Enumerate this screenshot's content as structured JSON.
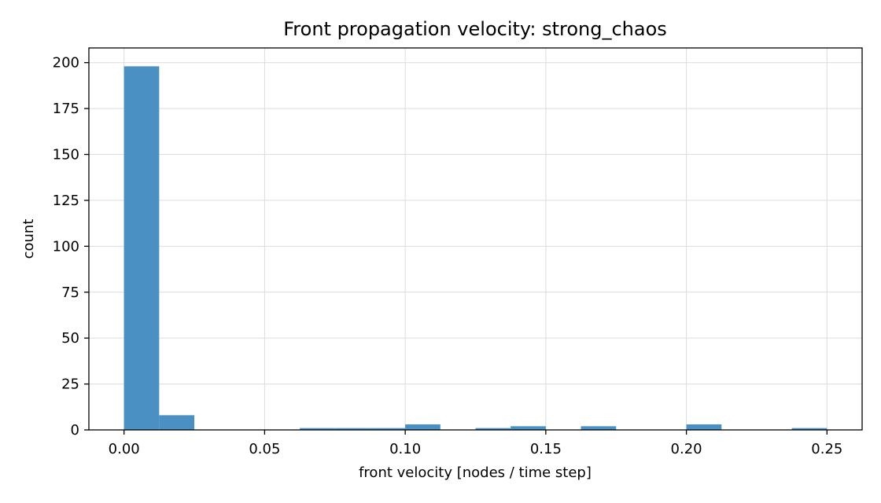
{
  "chart_data": {
    "type": "bar",
    "title": "Front propagation velocity: strong_chaos",
    "xlabel": "front velocity [nodes / time step]",
    "ylabel": "count",
    "xlim": [
      -0.0125,
      0.2625
    ],
    "ylim": [
      0,
      208
    ],
    "xticks": [
      0.0,
      0.05,
      0.1,
      0.15,
      0.2,
      0.25
    ],
    "xtick_labels": [
      "0.00",
      "0.05",
      "0.10",
      "0.15",
      "0.20",
      "0.25"
    ],
    "yticks": [
      0,
      25,
      50,
      75,
      100,
      125,
      150,
      175,
      200
    ],
    "ytick_labels": [
      "0",
      "25",
      "50",
      "75",
      "100",
      "125",
      "150",
      "175",
      "200"
    ],
    "grid": true,
    "bar_color": "#4a90c2",
    "bins": [
      {
        "x0": 0.0,
        "x1": 0.0125,
        "count": 198
      },
      {
        "x0": 0.0125,
        "x1": 0.025,
        "count": 8
      },
      {
        "x0": 0.025,
        "x1": 0.0375,
        "count": 0
      },
      {
        "x0": 0.0375,
        "x1": 0.05,
        "count": 0
      },
      {
        "x0": 0.05,
        "x1": 0.0625,
        "count": 0
      },
      {
        "x0": 0.0625,
        "x1": 0.075,
        "count": 1
      },
      {
        "x0": 0.075,
        "x1": 0.0875,
        "count": 1
      },
      {
        "x0": 0.0875,
        "x1": 0.1,
        "count": 1
      },
      {
        "x0": 0.1,
        "x1": 0.1125,
        "count": 3
      },
      {
        "x0": 0.1125,
        "x1": 0.125,
        "count": 0
      },
      {
        "x0": 0.125,
        "x1": 0.1375,
        "count": 1
      },
      {
        "x0": 0.1375,
        "x1": 0.15,
        "count": 2
      },
      {
        "x0": 0.15,
        "x1": 0.1625,
        "count": 0
      },
      {
        "x0": 0.1625,
        "x1": 0.175,
        "count": 2
      },
      {
        "x0": 0.175,
        "x1": 0.1875,
        "count": 0
      },
      {
        "x0": 0.1875,
        "x1": 0.2,
        "count": 0
      },
      {
        "x0": 0.2,
        "x1": 0.2125,
        "count": 3
      },
      {
        "x0": 0.2125,
        "x1": 0.225,
        "count": 0
      },
      {
        "x0": 0.225,
        "x1": 0.2375,
        "count": 0
      },
      {
        "x0": 0.2375,
        "x1": 0.25,
        "count": 1
      }
    ]
  }
}
